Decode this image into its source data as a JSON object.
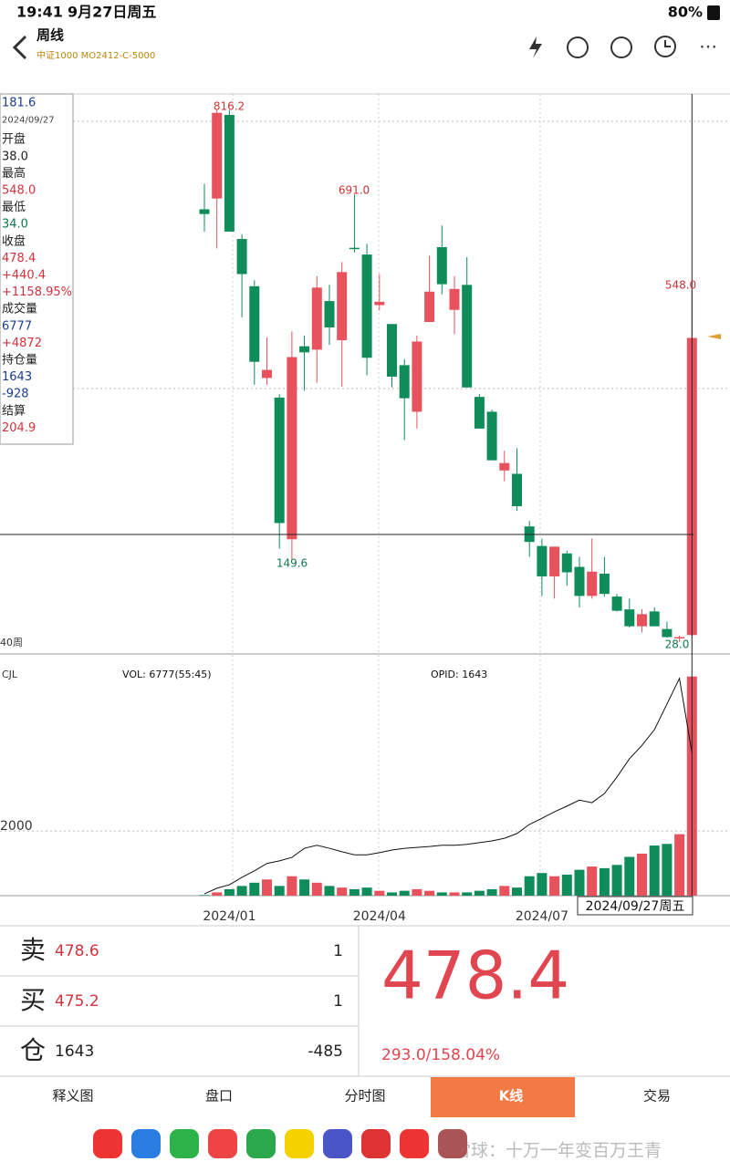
{
  "status": {
    "time": "19:41",
    "date": "9月27日周五",
    "battery": "80%"
  },
  "header": {
    "title": "周线",
    "subtitle": "中证1000 MO2412-C-5000"
  },
  "info": {
    "lines": [
      "181.6",
      "2024/09/27",
      "开盘",
      "38.0",
      "最高",
      "548.0",
      "最低",
      "34.0",
      "收盘",
      "478.4",
      "+440.4",
      "+1158.95%",
      "成交量",
      "6777",
      "+4872",
      "持仓量",
      "1643",
      "-928",
      "结算",
      "204.9"
    ],
    "colors": [
      "#1a3d8f",
      "#444",
      "#222",
      "#222",
      "#222",
      "#d2323c",
      "#222",
      "#0e7a4a",
      "#222",
      "#d2323c",
      "#d2323c",
      "#d2323c",
      "#222",
      "#1a3d8f",
      "#d2323c",
      "#222",
      "#1a3d8f",
      "#1a3d8f",
      "#222",
      "#d2323c"
    ]
  },
  "chart_data": {
    "type": "candlestick",
    "up_color": "#e8525c",
    "down_color": "#0e8c5a",
    "categories": [
      null,
      null,
      "2024/01",
      null,
      null,
      null,
      null,
      null,
      null,
      null,
      null,
      null,
      null,
      null,
      "2024/04",
      null,
      null,
      null,
      null,
      null,
      null,
      null,
      null,
      null,
      null,
      null,
      null,
      "2024/07",
      null,
      null,
      null,
      null,
      null,
      null,
      null,
      null,
      null,
      null,
      null,
      null
    ],
    "open": [
      669,
      685,
      809,
      625,
      555,
      419,
      390,
      180,
      466,
      461,
      533,
      475,
      612,
      602,
      527,
      499,
      438,
      369,
      502,
      613,
      520,
      557,
      391,
      369,
      282,
      277,
      199,
      170,
      125,
      159,
      139,
      96,
      129,
      95,
      76,
      51,
      73,
      47,
      33,
      38
    ],
    "high": [
      707,
      816.2,
      816.2,
      632,
      564,
      479,
      395,
      488,
      482,
      570,
      557,
      591,
      691,
      618,
      573,
      499,
      447,
      482,
      600,
      645,
      570,
      598,
      395,
      372,
      311,
      315,
      207,
      181,
      169,
      163,
      154,
      181,
      154,
      99,
      92,
      76,
      79,
      58,
      37,
      548
    ],
    "low": [
      636,
      611,
      636,
      509,
      409,
      409,
      166,
      149.6,
      400,
      412,
      468,
      406,
      605,
      423,
      519,
      405,
      327,
      344,
      502,
      543,
      484,
      405,
      344,
      297,
      266,
      222,
      154,
      96,
      92,
      111,
      79,
      92,
      95,
      73,
      49,
      42,
      51,
      34,
      28,
      34
    ],
    "close": [
      662,
      812,
      636,
      573,
      443,
      431,
      204,
      450,
      457,
      553,
      494,
      576,
      610,
      449,
      532,
      421,
      389,
      473,
      547,
      558,
      551,
      405,
      344,
      297,
      293,
      229,
      176,
      125,
      169,
      131,
      96,
      132,
      99,
      74,
      51,
      69,
      51,
      35,
      35,
      478.4
    ],
    "ylim": [
      10,
      840
    ],
    "annotations": [
      "816.2",
      "691.0",
      "149.6",
      "28.0",
      "548.0"
    ],
    "period": "40周",
    "cursor_date": "2024/09/27周五",
    "volume_title": "CJL",
    "vol_label": "VOL: 6777(55:45)",
    "oi_label": "OPID: 1643",
    "volume": [
      20,
      100,
      200,
      300,
      400,
      500,
      300,
      600,
      500,
      400,
      300,
      250,
      200,
      250,
      150,
      100,
      150,
      200,
      150,
      100,
      100,
      100,
      150,
      200,
      300,
      250,
      600,
      700,
      600,
      650,
      800,
      900,
      850,
      950,
      1200,
      1300,
      1550,
      1600,
      1900,
      6777
    ],
    "vol_ylim": [
      0,
      7390
    ],
    "vol_yticks": [
      2000
    ],
    "oi": [
      20,
      85,
      125,
      210,
      285,
      370,
      400,
      440,
      545,
      580,
      545,
      505,
      470,
      470,
      495,
      525,
      545,
      555,
      565,
      580,
      580,
      590,
      610,
      630,
      660,
      715,
      820,
      890,
      965,
      1030,
      1100,
      1070,
      1175,
      1365,
      1575,
      1730,
      1910,
      2205,
      2500,
      1643
    ],
    "oi_ylim": [
      0,
      2750
    ],
    "grid": true
  },
  "quote": {
    "rows": [
      [
        "卖",
        "478.6",
        "1"
      ],
      [
        "买",
        "475.2",
        "1"
      ],
      [
        "仓",
        "1643",
        "-485"
      ]
    ],
    "price": "478.4",
    "change": "293.0/158.04%"
  },
  "tabs": [
    "释义图",
    "盘口",
    "分时图",
    "K线",
    "交易"
  ],
  "watermark": "雪球：十万一年变百万王青"
}
